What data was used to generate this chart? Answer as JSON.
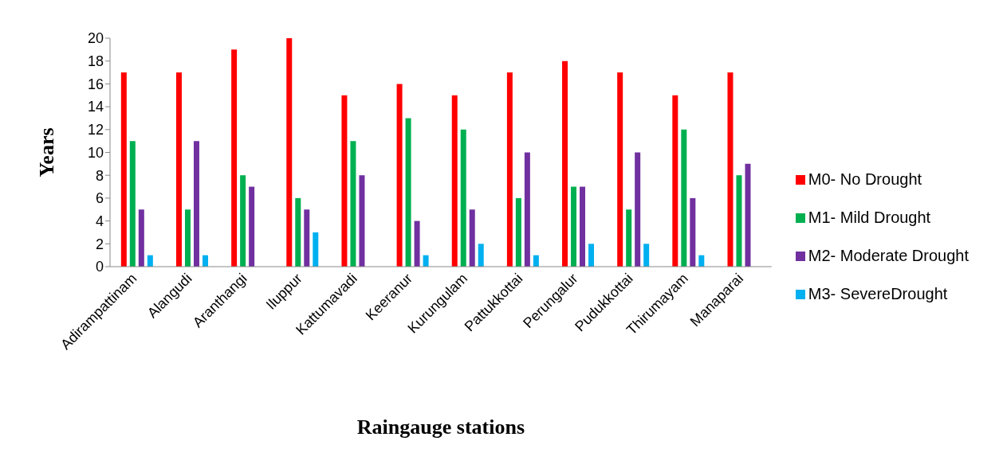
{
  "chart_data": {
    "type": "bar",
    "xlabel": "Raingauge stations",
    "ylabel": "Years",
    "categories": [
      "Adirampattinam",
      "Alangudi",
      "Aranthangi",
      "Iluppur",
      "Kattumavadi",
      "Keeranur",
      "Kurungulam",
      "Pattukkottai",
      "Perungalur",
      "Pudukkottai",
      "Thirumayam",
      "Manaparai"
    ],
    "series": [
      {
        "name": "M0- No Drought",
        "color": "#ff0000",
        "values": [
          17,
          17,
          19,
          20,
          15,
          16,
          15,
          17,
          18,
          17,
          15,
          17
        ]
      },
      {
        "name": "M1- Mild Drought",
        "color": "#00b050",
        "values": [
          11,
          5,
          8,
          6,
          11,
          13,
          12,
          6,
          7,
          5,
          12,
          8
        ]
      },
      {
        "name": "M2- Moderate Drought",
        "color": "#7030a0",
        "values": [
          5,
          11,
          7,
          5,
          8,
          4,
          5,
          10,
          7,
          10,
          6,
          9
        ]
      },
      {
        "name": "M3- SevereDrought",
        "color": "#00b0f0",
        "values": [
          1,
          1,
          0,
          3,
          0,
          1,
          2,
          1,
          2,
          2,
          1,
          0
        ]
      }
    ],
    "ylim": [
      0,
      20
    ],
    "yticks": [
      0,
      2,
      4,
      6,
      8,
      10,
      12,
      14,
      16,
      18,
      20
    ],
    "grid": false,
    "legend": "right"
  }
}
